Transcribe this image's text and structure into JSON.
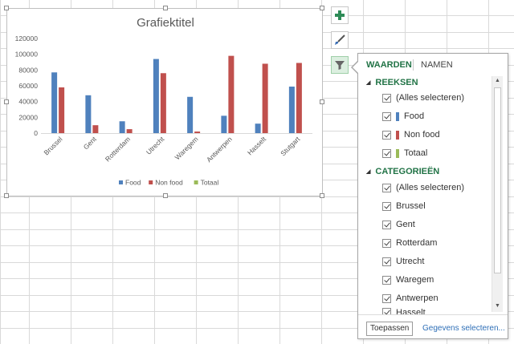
{
  "chart": {
    "title": "Grafiektitel",
    "legend": [
      {
        "label": "Food",
        "color": "#4f81bd"
      },
      {
        "label": "Non food",
        "color": "#c0504d"
      },
      {
        "label": "Totaal",
        "color": "#9bbb59"
      }
    ]
  },
  "chart_data": {
    "type": "bar",
    "title": "Grafiektitel",
    "categories": [
      "Brussel",
      "Gent",
      "Rotterdam",
      "Utrecht",
      "Waregem",
      "Antwerpen",
      "Hasselt",
      "Stutgart"
    ],
    "series": [
      {
        "name": "Food",
        "color": "#4f81bd",
        "values": [
          77000,
          48000,
          15000,
          94000,
          46000,
          22000,
          12000,
          59000
        ]
      },
      {
        "name": "Non food",
        "color": "#c0504d",
        "values": [
          58000,
          10000,
          5000,
          76000,
          2000,
          98000,
          88000,
          89000
        ]
      }
    ],
    "yticks": [
      "0",
      "20000",
      "40000",
      "60000",
      "80000",
      "100000",
      "120000"
    ],
    "ylim": [
      0,
      120000
    ],
    "legend_position": "bottom",
    "grid": false
  },
  "side_buttons": [
    {
      "name": "chart-elements-button",
      "icon": "plus-icon"
    },
    {
      "name": "chart-styles-button",
      "icon": "paintbrush-icon"
    },
    {
      "name": "chart-filters-button",
      "icon": "funnel-icon"
    }
  ],
  "filter_pane": {
    "tabs": {
      "values": "WAARDEN",
      "names": "NAMEN"
    },
    "series_section": {
      "title": "REEKSEN",
      "items": [
        {
          "label": "(Alles selecteren)",
          "checked": true,
          "color": ""
        },
        {
          "label": "Food",
          "checked": true,
          "color": "#4f81bd"
        },
        {
          "label": "Non food",
          "checked": true,
          "color": "#c0504d"
        },
        {
          "label": "Totaal",
          "checked": true,
          "color": "#9bbb59"
        }
      ]
    },
    "categories_section": {
      "title": "CATEGORIEËN",
      "items": [
        {
          "label": "(Alles selecteren)",
          "checked": true
        },
        {
          "label": "Brussel",
          "checked": true
        },
        {
          "label": "Gent",
          "checked": true
        },
        {
          "label": "Rotterdam",
          "checked": true
        },
        {
          "label": "Utrecht",
          "checked": true
        },
        {
          "label": "Waregem",
          "checked": true
        },
        {
          "label": "Antwerpen",
          "checked": true
        },
        {
          "label": "Hasselt",
          "checked": true
        }
      ]
    },
    "apply_label": "Toepassen",
    "select_data_label": "Gegevens selecteren..."
  }
}
